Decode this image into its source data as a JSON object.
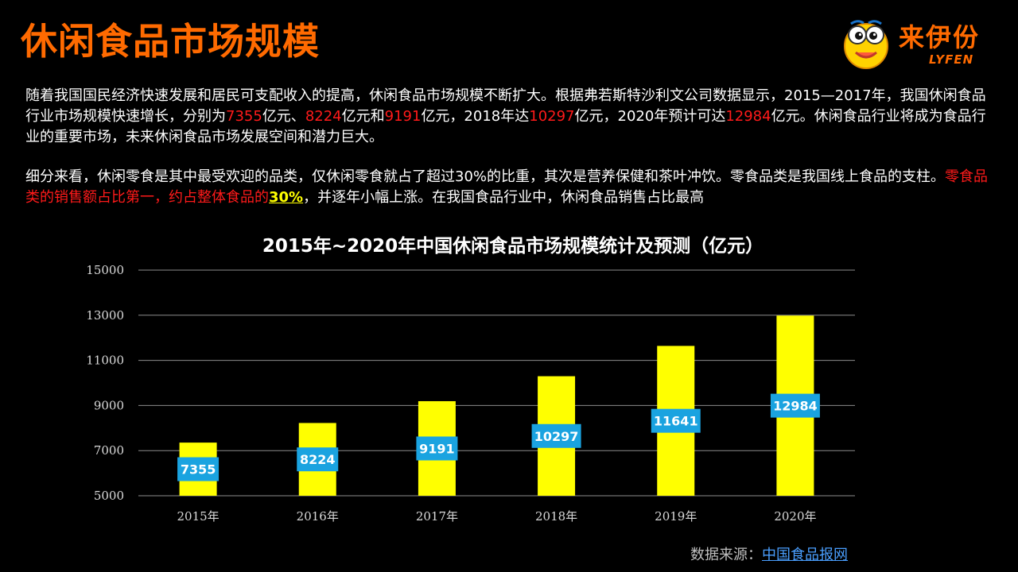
{
  "slide": {
    "title": "休闲食品市场规模"
  },
  "logo": {
    "name": "来伊份",
    "sub": "LYFEN"
  },
  "paragraph1": {
    "p1": "随着我国国民经济快速发展和居民可支配收入的提高，休闲食品市场规模不断扩大。根据弗若斯特沙利文公司数据显示，2015—2017年，我国休闲食品行业市场规模快速增长，分别为",
    "v1": "7355",
    "p2": "亿元、",
    "v2": "8224",
    "p3": "亿元和",
    "v3": "9191",
    "p4": "亿元，2018年达",
    "v4": "10297",
    "p5": "亿元，2020年预计可达",
    "v5": "12984",
    "p6": "亿元。休闲食品行业将成为食品行业的重要市场，未来休闲食品市场发展空间和潜力巨大。"
  },
  "paragraph2": {
    "p1": "细分来看，休闲零食是其中最受欢迎的品类，仅休闲零食就占了超过30%的比重，其次是营养保健和茶叶冲饮。零食品类是我国线上食品的支柱。",
    "red": "零食品类的销售额占比第一，约占整体食品的",
    "highlight": "30%",
    "p2": "，并逐年小幅上涨。在我国食品行业中，休闲食品销售占比最高"
  },
  "chart_data": {
    "type": "bar",
    "title": "2015年~2020年中国休闲食品市场规模统计及预测（亿元）",
    "categories": [
      "2015年",
      "2016年",
      "2017年",
      "2018年",
      "2019年",
      "2020年"
    ],
    "values": [
      7355,
      8224,
      9191,
      10297,
      11641,
      12984
    ],
    "ylim": [
      5000,
      15000
    ],
    "yticks": [
      5000,
      7000,
      9000,
      11000,
      13000,
      15000
    ],
    "grid": true,
    "bar_color": "#ffff00",
    "label_bg_color": "#1aa3e0",
    "legend": "none"
  },
  "source": {
    "label": "数据来源：",
    "link": "中国食品报网"
  },
  "colors": {
    "title": "#ff6a00",
    "highlight_red": "#ff1a1a",
    "highlight_yellow": "#ffff00"
  }
}
